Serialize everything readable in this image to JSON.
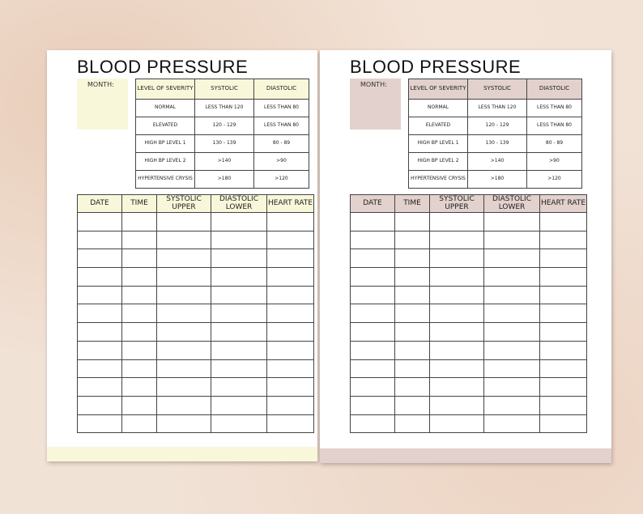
{
  "pages": [
    {
      "title": "BLOOD PRESSURE",
      "month_label": "MONTH:",
      "severity_table": {
        "header": [
          "LEVEL OF SEVERITY",
          "SYSTOLIC",
          "DIASTOLIC"
        ],
        "rows": [
          [
            "NORMAL",
            "LESS THAN 120",
            "LESS THAN 80"
          ],
          [
            "ELEVATED",
            "120 - 129",
            "LESS THAN 80"
          ],
          [
            "HIGH BP LEVEL 1",
            "130 - 139",
            "80 - 89"
          ],
          [
            "HIGH BP LEVEL 2",
            ">140",
            ">90"
          ],
          [
            "HYPERTENSIVE CRYSIS",
            ">180",
            ">120"
          ]
        ]
      },
      "log_table": {
        "header": [
          "DATE",
          "TIME",
          "SYSTOLIC UPPER",
          "DIASTOLIC LOWER",
          "HEART RATE"
        ]
      }
    },
    {
      "title": "BLOOD PRESSURE",
      "month_label": "MONTH:",
      "severity_table": {
        "header": [
          "LEVEL OF SEVERITY",
          "SYSTOLIC",
          "DIASTOLIC"
        ],
        "rows": [
          [
            "NORMAL",
            "LESS THAN 120",
            "LESS THAN 80"
          ],
          [
            "ELEVATED",
            "120 - 129",
            "LESS THAN 80"
          ],
          [
            "HIGH BP LEVEL 1",
            "130 - 139",
            "80 - 89"
          ],
          [
            "HIGH BP LEVEL 2",
            ">140",
            ">90"
          ],
          [
            "HYPERTENSIVE CRYSIS",
            ">180",
            ">120"
          ]
        ]
      },
      "log_table": {
        "header": [
          "DATE",
          "TIME",
          "SYSTOLIC UPPER",
          "DIASTOLIC LOWER",
          "HEART RATE"
        ]
      }
    }
  ]
}
